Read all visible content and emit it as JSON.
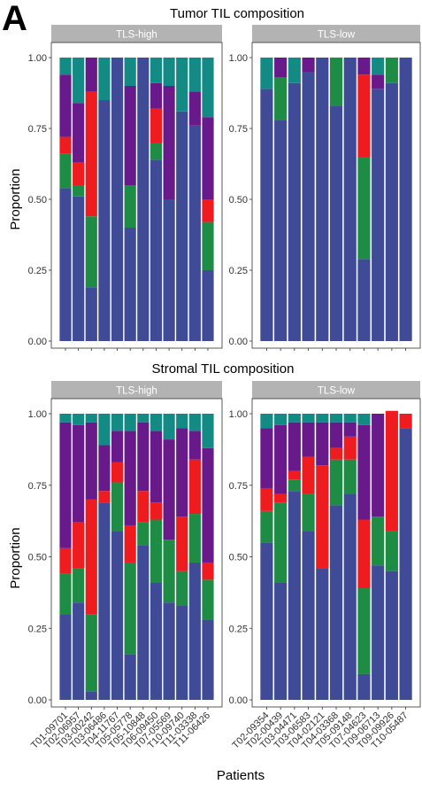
{
  "panel_letter": "A",
  "figure": {
    "x_axis_label": "Patients",
    "y_axis_label": "Proportion"
  },
  "colors": {
    "blue": "#3f4b96",
    "green": "#1e8c45",
    "red": "#ee1c1f",
    "purple": "#68198a",
    "teal": "#138a84",
    "strip": "#b3b3b3"
  },
  "chart_data": [
    {
      "type": "bar",
      "stacked": true,
      "title": "Tumor TIL composition",
      "facets": [
        {
          "label": "TLS-high",
          "categories": [
            "T01-09701",
            "T02-06957",
            "T03-00242",
            "T03-06486",
            "T04-11767",
            "T05-05778",
            "T05-10848",
            "T06-09450",
            "T07-05569",
            "T10-09740",
            "T11-03338",
            "T11-06426"
          ],
          "series": [
            {
              "color_key": "blue",
              "values": [
                0.54,
                0.51,
                0.19,
                0.85,
                1.0,
                0.4,
                1.0,
                0.64,
                0.5,
                0.81,
                0.76,
                0.25
              ]
            },
            {
              "color_key": "green",
              "values": [
                0.12,
                0.04,
                0.25,
                0,
                0,
                0.15,
                0,
                0.06,
                0,
                0,
                0,
                0.17
              ]
            },
            {
              "color_key": "red",
              "values": [
                0.06,
                0.08,
                0.44,
                0,
                0,
                0,
                0,
                0.12,
                0,
                0,
                0,
                0.08
              ]
            },
            {
              "color_key": "purple",
              "values": [
                0.22,
                0.21,
                0.12,
                0,
                0,
                0.35,
                0,
                0.09,
                0.4,
                0,
                0.12,
                0.29
              ]
            },
            {
              "color_key": "teal",
              "values": [
                0.06,
                0.16,
                0,
                0.15,
                0,
                0.1,
                0,
                0.09,
                0.1,
                0.19,
                0.12,
                0.21
              ]
            }
          ]
        },
        {
          "label": "TLS-low",
          "categories": [
            "T02-09354",
            "T02-00439",
            "T03-04471",
            "T03-06583",
            "T04-02121",
            "T04-03368",
            "T05-09148",
            "T07-04623",
            "T09-06713",
            "T09-09926",
            "T10-05487"
          ],
          "series": [
            {
              "color_key": "blue",
              "values": [
                0.89,
                0.78,
                0.91,
                0.95,
                1.0,
                0.83,
                1.0,
                0.29,
                0.89,
                0.91,
                1.0
              ]
            },
            {
              "color_key": "green",
              "values": [
                0,
                0.15,
                0,
                0,
                0,
                0.17,
                0,
                0.36,
                0,
                0.09,
                0
              ]
            },
            {
              "color_key": "red",
              "values": [
                0,
                0,
                0,
                0,
                0,
                0,
                0,
                0.29,
                0,
                0,
                0
              ]
            },
            {
              "color_key": "purple",
              "values": [
                0,
                0.07,
                0,
                0.05,
                0,
                0,
                0,
                0.06,
                0.05,
                0,
                0
              ]
            },
            {
              "color_key": "teal",
              "values": [
                0.11,
                0,
                0.09,
                0,
                0,
                0,
                0,
                0,
                0.06,
                0,
                0
              ]
            }
          ]
        }
      ],
      "ylabel": "Proportion",
      "ylim": [
        0,
        1
      ],
      "y_ticks": [
        "0.00",
        "0.25",
        "0.50",
        "0.75",
        "1.00"
      ],
      "grid": false
    },
    {
      "type": "bar",
      "stacked": true,
      "title": "Stromal TIL composition",
      "facets": [
        {
          "label": "TLS-high",
          "categories": [
            "T01-09701",
            "T02-06957",
            "T03-00242",
            "T03-06486",
            "T04-11767",
            "T05-05778",
            "T05-10848",
            "T06-09450",
            "T07-05569",
            "T10-09740",
            "T11-03338",
            "T11-06426"
          ],
          "series": [
            {
              "color_key": "blue",
              "values": [
                0.3,
                0.34,
                0.03,
                0.69,
                0.59,
                0.16,
                0.54,
                0.41,
                0.34,
                0.33,
                0.48,
                0.28
              ]
            },
            {
              "color_key": "green",
              "values": [
                0.14,
                0.12,
                0.27,
                0,
                0.17,
                0.32,
                0.08,
                0.22,
                0.22,
                0.12,
                0.17,
                0.14
              ]
            },
            {
              "color_key": "red",
              "values": [
                0.09,
                0.16,
                0.4,
                0.04,
                0.07,
                0.13,
                0.11,
                0.06,
                0,
                0.19,
                0.19,
                0.06
              ]
            },
            {
              "color_key": "purple",
              "values": [
                0.44,
                0.34,
                0.27,
                0.16,
                0.11,
                0.33,
                0.24,
                0.25,
                0.35,
                0.31,
                0.1,
                0.4
              ]
            },
            {
              "color_key": "teal",
              "values": [
                0.03,
                0.04,
                0.03,
                0.11,
                0.06,
                0.06,
                0.03,
                0.06,
                0.09,
                0.05,
                0.06,
                0.12
              ]
            }
          ]
        },
        {
          "label": "TLS-low",
          "categories": [
            "T02-09354",
            "T02-00439",
            "T03-04471",
            "T03-06583",
            "T04-02121",
            "T04-03368",
            "T05-09148",
            "T07-04623",
            "T09-06713",
            "T09-09926",
            "T10-05487"
          ],
          "series": [
            {
              "color_key": "blue",
              "values": [
                0.55,
                0.41,
                0.73,
                0.59,
                0.46,
                0.68,
                0.72,
                0.09,
                0.47,
                0.45,
                0.95
              ]
            },
            {
              "color_key": "green",
              "values": [
                0.11,
                0.28,
                0.04,
                0.13,
                0,
                0.16,
                0.12,
                0.3,
                0.17,
                0.14,
                0
              ]
            },
            {
              "color_key": "red",
              "values": [
                0.08,
                0.03,
                0.03,
                0.13,
                0.36,
                0.04,
                0.08,
                0.24,
                0,
                0.42,
                0.05
              ]
            },
            {
              "color_key": "purple",
              "values": [
                0.21,
                0.24,
                0.17,
                0.12,
                0.15,
                0.09,
                0.05,
                0.33,
                0.36,
                0,
                0
              ]
            },
            {
              "color_key": "teal",
              "values": [
                0.05,
                0.04,
                0.03,
                0.03,
                0.03,
                0.03,
                0.03,
                0.04,
                0,
                0,
                0
              ]
            }
          ]
        }
      ],
      "xlabel": "Patients",
      "ylabel": "Proportion",
      "ylim": [
        0,
        1
      ],
      "y_ticks": [
        "0.00",
        "0.25",
        "0.50",
        "0.75",
        "1.00"
      ],
      "grid": false
    }
  ]
}
